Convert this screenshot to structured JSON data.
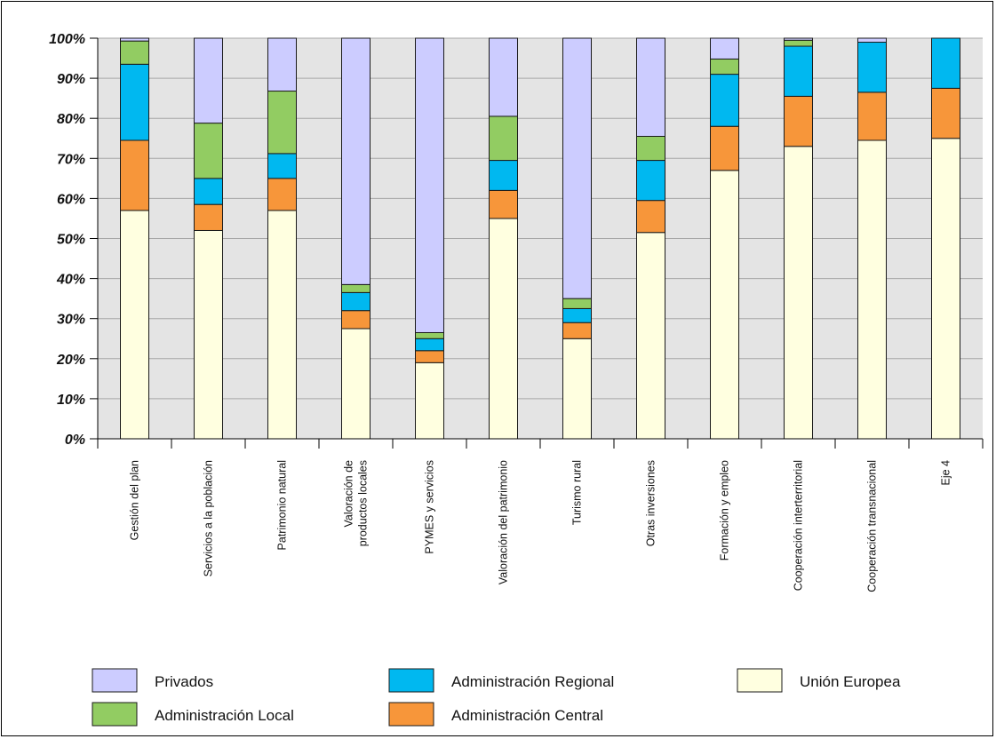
{
  "chart_data": {
    "type": "bar",
    "stacked": true,
    "percent": true,
    "categories": [
      [
        "Gestión del plan"
      ],
      [
        "Servicios a la población"
      ],
      [
        "Patrimonio natural"
      ],
      [
        "Valoración de",
        "productos locales"
      ],
      [
        "PYMES y servicios"
      ],
      [
        "Valoración del patrimonio"
      ],
      [
        "Turismo  rural"
      ],
      [
        "Otras inversiones"
      ],
      [
        "Formación y empleo"
      ],
      [
        "Cooperación interterritorial"
      ],
      [
        "Cooperación transnacional"
      ],
      [
        "Eje 4"
      ]
    ],
    "series": [
      {
        "name": "Unión Europea",
        "color": "#FFFFE0",
        "values": [
          57,
          52,
          57,
          27.5,
          19,
          55,
          25,
          51.5,
          67,
          73,
          74.5,
          75
        ]
      },
      {
        "name": "Administración Central",
        "color": "#F7963A",
        "values": [
          17.5,
          6.5,
          8,
          4.5,
          3,
          7,
          4,
          8,
          11,
          12.5,
          12,
          12.5
        ]
      },
      {
        "name": "Administración Regional",
        "color": "#00B8F0",
        "values": [
          19,
          6.5,
          6.2,
          4.5,
          3,
          7.5,
          3.5,
          10,
          13,
          12.5,
          12.5,
          12.5
        ]
      },
      {
        "name": "Administración Local",
        "color": "#92CC62",
        "values": [
          5.8,
          13.8,
          15.6,
          2,
          1.5,
          11,
          2.5,
          6,
          3.8,
          1.5,
          0,
          0
        ]
      },
      {
        "name": "Privados",
        "color": "#CCCCFF",
        "values": [
          0.7,
          21.2,
          13.2,
          61.5,
          73.5,
          19.5,
          65,
          24.5,
          5.2,
          0.5,
          1,
          0
        ]
      }
    ],
    "yticks": [
      "0%",
      "10%",
      "20%",
      "30%",
      "40%",
      "50%",
      "60%",
      "70%",
      "80%",
      "90%",
      "100%"
    ],
    "ylim": [
      0,
      100
    ],
    "grid": true,
    "legend_position": "bottom",
    "legend_order": [
      "Privados",
      "Administración Regional",
      "Unión Europea",
      "Administración Local",
      "Administración Central"
    ]
  }
}
